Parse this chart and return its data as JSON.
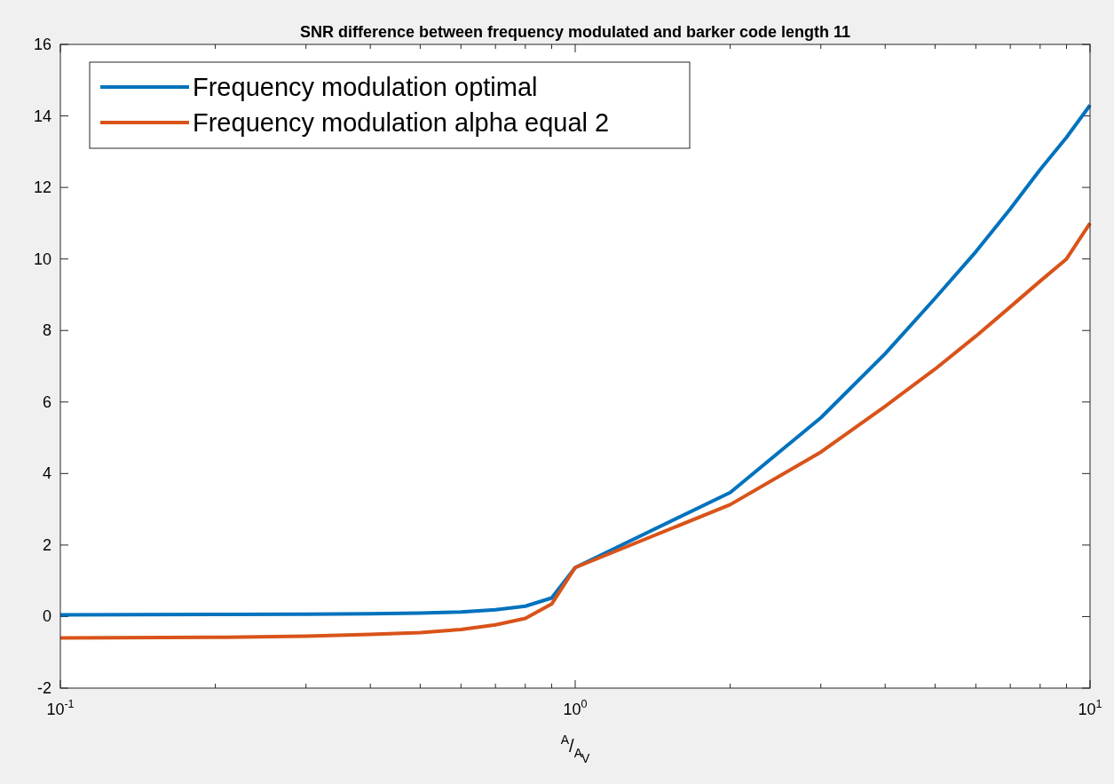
{
  "chart_data": {
    "type": "line",
    "title": "SNR difference between frequency modulated and barker code length 11",
    "xlabel": "$^{A}$/$_{A}$$_{V}$",
    "log": "x",
    "grid": false,
    "legend": "top left",
    "line_style": "solid",
    "marker": "none",
    "x": [
      0.1,
      0.2,
      0.3,
      0.4,
      0.5,
      0.6,
      0.7,
      0.8,
      0.9,
      1,
      2,
      3,
      4,
      5,
      6,
      7,
      8,
      9,
      10
    ],
    "xlim": [
      0.1,
      10
    ],
    "xticks": [
      {
        "value": 0.1,
        "label": "10$^{-1}$"
      },
      {
        "value": 0.2,
        "label": null
      },
      {
        "value": 0.3,
        "label": null
      },
      {
        "value": 0.4,
        "label": null
      },
      {
        "value": 0.5,
        "label": null
      },
      {
        "value": 0.6,
        "label": null
      },
      {
        "value": 0.7,
        "label": null
      },
      {
        "value": 0.8,
        "label": null
      },
      {
        "value": 0.9,
        "label": null
      },
      {
        "value": 1,
        "label": "10$^{0}$"
      },
      {
        "value": 2,
        "label": null
      },
      {
        "value": 3,
        "label": null
      },
      {
        "value": 4,
        "label": null
      },
      {
        "value": 5,
        "label": null
      },
      {
        "value": 6,
        "label": null
      },
      {
        "value": 7,
        "label": null
      },
      {
        "value": 8,
        "label": null
      },
      {
        "value": 9,
        "label": null
      },
      {
        "value": 10,
        "label": "10$^{1}$"
      }
    ],
    "ylim": [
      -2,
      16
    ],
    "yticks": [
      -2,
      0,
      2,
      4,
      6,
      8,
      10,
      12,
      14,
      16
    ],
    "series": [
      {
        "name": "Frequency modulation optimal",
        "color": "#0072bd",
        "values": [
          0.05,
          0.06,
          0.07,
          0.08,
          0.1,
          0.13,
          0.19,
          0.29,
          0.52,
          1.37,
          3.47,
          5.56,
          7.35,
          8.9,
          10.2,
          11.4,
          12.5,
          13.4,
          14.3
        ]
      },
      {
        "name": "Frequency modulation alpha equal 2",
        "color": "#d95319",
        "values": [
          -0.6,
          -0.58,
          -0.55,
          -0.5,
          -0.45,
          -0.36,
          -0.23,
          -0.05,
          0.35,
          1.37,
          3.13,
          4.6,
          5.88,
          6.92,
          7.84,
          8.66,
          9.38,
          10.0,
          11.0
        ]
      }
    ]
  }
}
